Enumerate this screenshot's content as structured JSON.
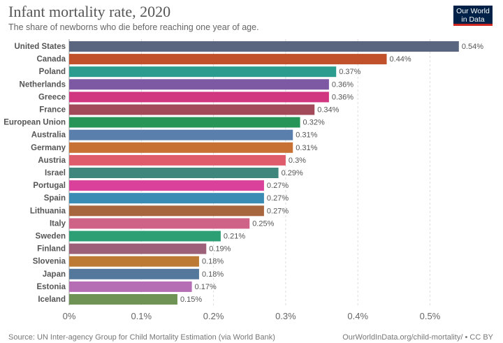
{
  "header": {
    "title": "Infant mortality rate, 2020",
    "subtitle": "The share of newborns who die before reaching one year of age.",
    "logo_line1": "Our World",
    "logo_line2": "in Data"
  },
  "footer": {
    "source": "Source: UN Inter-agency Group for Child Mortality Estimation (via World Bank)",
    "url": "OurWorldInData.org/child-mortality/ • CC BY"
  },
  "chart_data": {
    "type": "bar",
    "orientation": "horizontal",
    "title": "Infant mortality rate, 2020",
    "subtitle": "The share of newborns who die before reaching one year of age.",
    "categories": [
      "United States",
      "Canada",
      "Poland",
      "Netherlands",
      "Greece",
      "France",
      "European Union",
      "Australia",
      "Germany",
      "Austria",
      "Israel",
      "Portugal",
      "Spain",
      "Lithuania",
      "Italy",
      "Sweden",
      "Finland",
      "Slovenia",
      "Japan",
      "Estonia",
      "Iceland"
    ],
    "values": [
      0.54,
      0.44,
      0.37,
      0.36,
      0.36,
      0.34,
      0.32,
      0.31,
      0.31,
      0.3,
      0.29,
      0.27,
      0.27,
      0.27,
      0.25,
      0.21,
      0.19,
      0.18,
      0.18,
      0.17,
      0.15
    ],
    "value_labels": [
      "0.54%",
      "0.44%",
      "0.37%",
      "0.36%",
      "0.36%",
      "0.34%",
      "0.32%",
      "0.31%",
      "0.31%",
      "0.3%",
      "0.29%",
      "0.27%",
      "0.27%",
      "0.27%",
      "0.25%",
      "0.21%",
      "0.19%",
      "0.18%",
      "0.18%",
      "0.17%",
      "0.15%"
    ],
    "colors": [
      "#5a6680",
      "#c1512a",
      "#2b9c8d",
      "#7d59a3",
      "#d13781",
      "#a24a5a",
      "#279458",
      "#5b7fad",
      "#c77135",
      "#df5c6c",
      "#3f877c",
      "#d9419a",
      "#3b8cb5",
      "#a8663f",
      "#cf6387",
      "#2d9f74",
      "#9c6079",
      "#bd7a35",
      "#54789c",
      "#b56db3",
      "#6e9355"
    ],
    "xticks": [
      0,
      0.1,
      0.2,
      0.3,
      0.4,
      0.5
    ],
    "xtick_labels": [
      "0%",
      "0.1%",
      "0.2%",
      "0.3%",
      "0.4%",
      "0.5%"
    ],
    "xlim": [
      0,
      0.54
    ],
    "grid": true,
    "xlabel": "",
    "ylabel": ""
  }
}
